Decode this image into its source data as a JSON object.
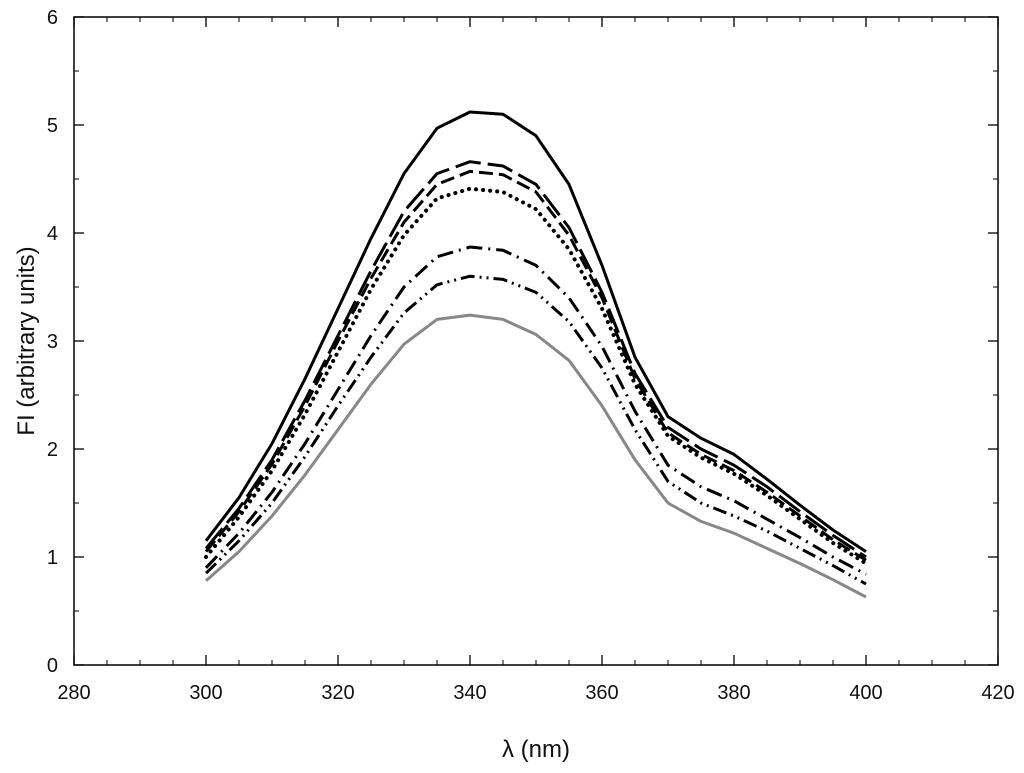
{
  "chart_data": {
    "type": "line",
    "xlabel": "λ (nm)",
    "ylabel": "FI (arbitrary units)",
    "xlim": [
      280,
      420
    ],
    "ylim": [
      0,
      6
    ],
    "xticks": [
      "280",
      "300",
      "320",
      "340",
      "360",
      "380",
      "400",
      "420"
    ],
    "yticks": [
      "0",
      "1",
      "2",
      "3",
      "4",
      "5",
      "6"
    ],
    "x_minor_step": 5,
    "y_minor_step": 0.5,
    "grid": false,
    "legend": "none",
    "x": [
      300,
      305,
      310,
      315,
      320,
      325,
      330,
      335,
      340,
      345,
      350,
      355,
      360,
      365,
      370,
      375,
      380,
      385,
      390,
      395,
      400
    ],
    "series": [
      {
        "style": "solid",
        "color": "#000000",
        "values": [
          1.15,
          1.55,
          2.05,
          2.65,
          3.3,
          3.95,
          4.55,
          4.97,
          5.12,
          5.1,
          4.9,
          4.45,
          3.7,
          2.85,
          2.3,
          2.1,
          1.95,
          1.72,
          1.48,
          1.25,
          1.05
        ]
      },
      {
        "style": "long-dash",
        "color": "#000000",
        "values": [
          1.08,
          1.45,
          1.9,
          2.45,
          3.05,
          3.65,
          4.2,
          4.55,
          4.66,
          4.62,
          4.45,
          4.05,
          3.45,
          2.7,
          2.2,
          2.0,
          1.85,
          1.65,
          1.42,
          1.2,
          1.0
        ]
      },
      {
        "style": "dash",
        "color": "#000000",
        "values": [
          1.05,
          1.42,
          1.86,
          2.4,
          3.0,
          3.58,
          4.1,
          4.45,
          4.57,
          4.54,
          4.38,
          3.98,
          3.4,
          2.65,
          2.15,
          1.95,
          1.8,
          1.6,
          1.38,
          1.16,
          0.97
        ]
      },
      {
        "style": "dot",
        "color": "#000000",
        "values": [
          1.0,
          1.37,
          1.8,
          2.32,
          2.9,
          3.48,
          3.98,
          4.32,
          4.41,
          4.38,
          4.22,
          3.85,
          3.3,
          2.6,
          2.12,
          1.92,
          1.77,
          1.57,
          1.35,
          1.13,
          0.94
        ]
      },
      {
        "style": "dash-dot",
        "color": "#000000",
        "values": [
          0.9,
          1.22,
          1.6,
          2.05,
          2.55,
          3.05,
          3.5,
          3.78,
          3.87,
          3.84,
          3.7,
          3.4,
          2.95,
          2.35,
          1.85,
          1.65,
          1.52,
          1.35,
          1.18,
          1.0,
          0.84
        ]
      },
      {
        "style": "dash-dot-dot",
        "color": "#000000",
        "values": [
          0.85,
          1.15,
          1.5,
          1.93,
          2.4,
          2.85,
          3.26,
          3.52,
          3.6,
          3.57,
          3.45,
          3.18,
          2.75,
          2.18,
          1.7,
          1.5,
          1.38,
          1.24,
          1.08,
          0.92,
          0.75
        ]
      },
      {
        "style": "solid",
        "color": "#888888",
        "values": [
          0.78,
          1.05,
          1.38,
          1.76,
          2.18,
          2.6,
          2.97,
          3.2,
          3.24,
          3.2,
          3.06,
          2.82,
          2.4,
          1.9,
          1.5,
          1.33,
          1.22,
          1.08,
          0.94,
          0.79,
          0.63
        ]
      }
    ]
  }
}
